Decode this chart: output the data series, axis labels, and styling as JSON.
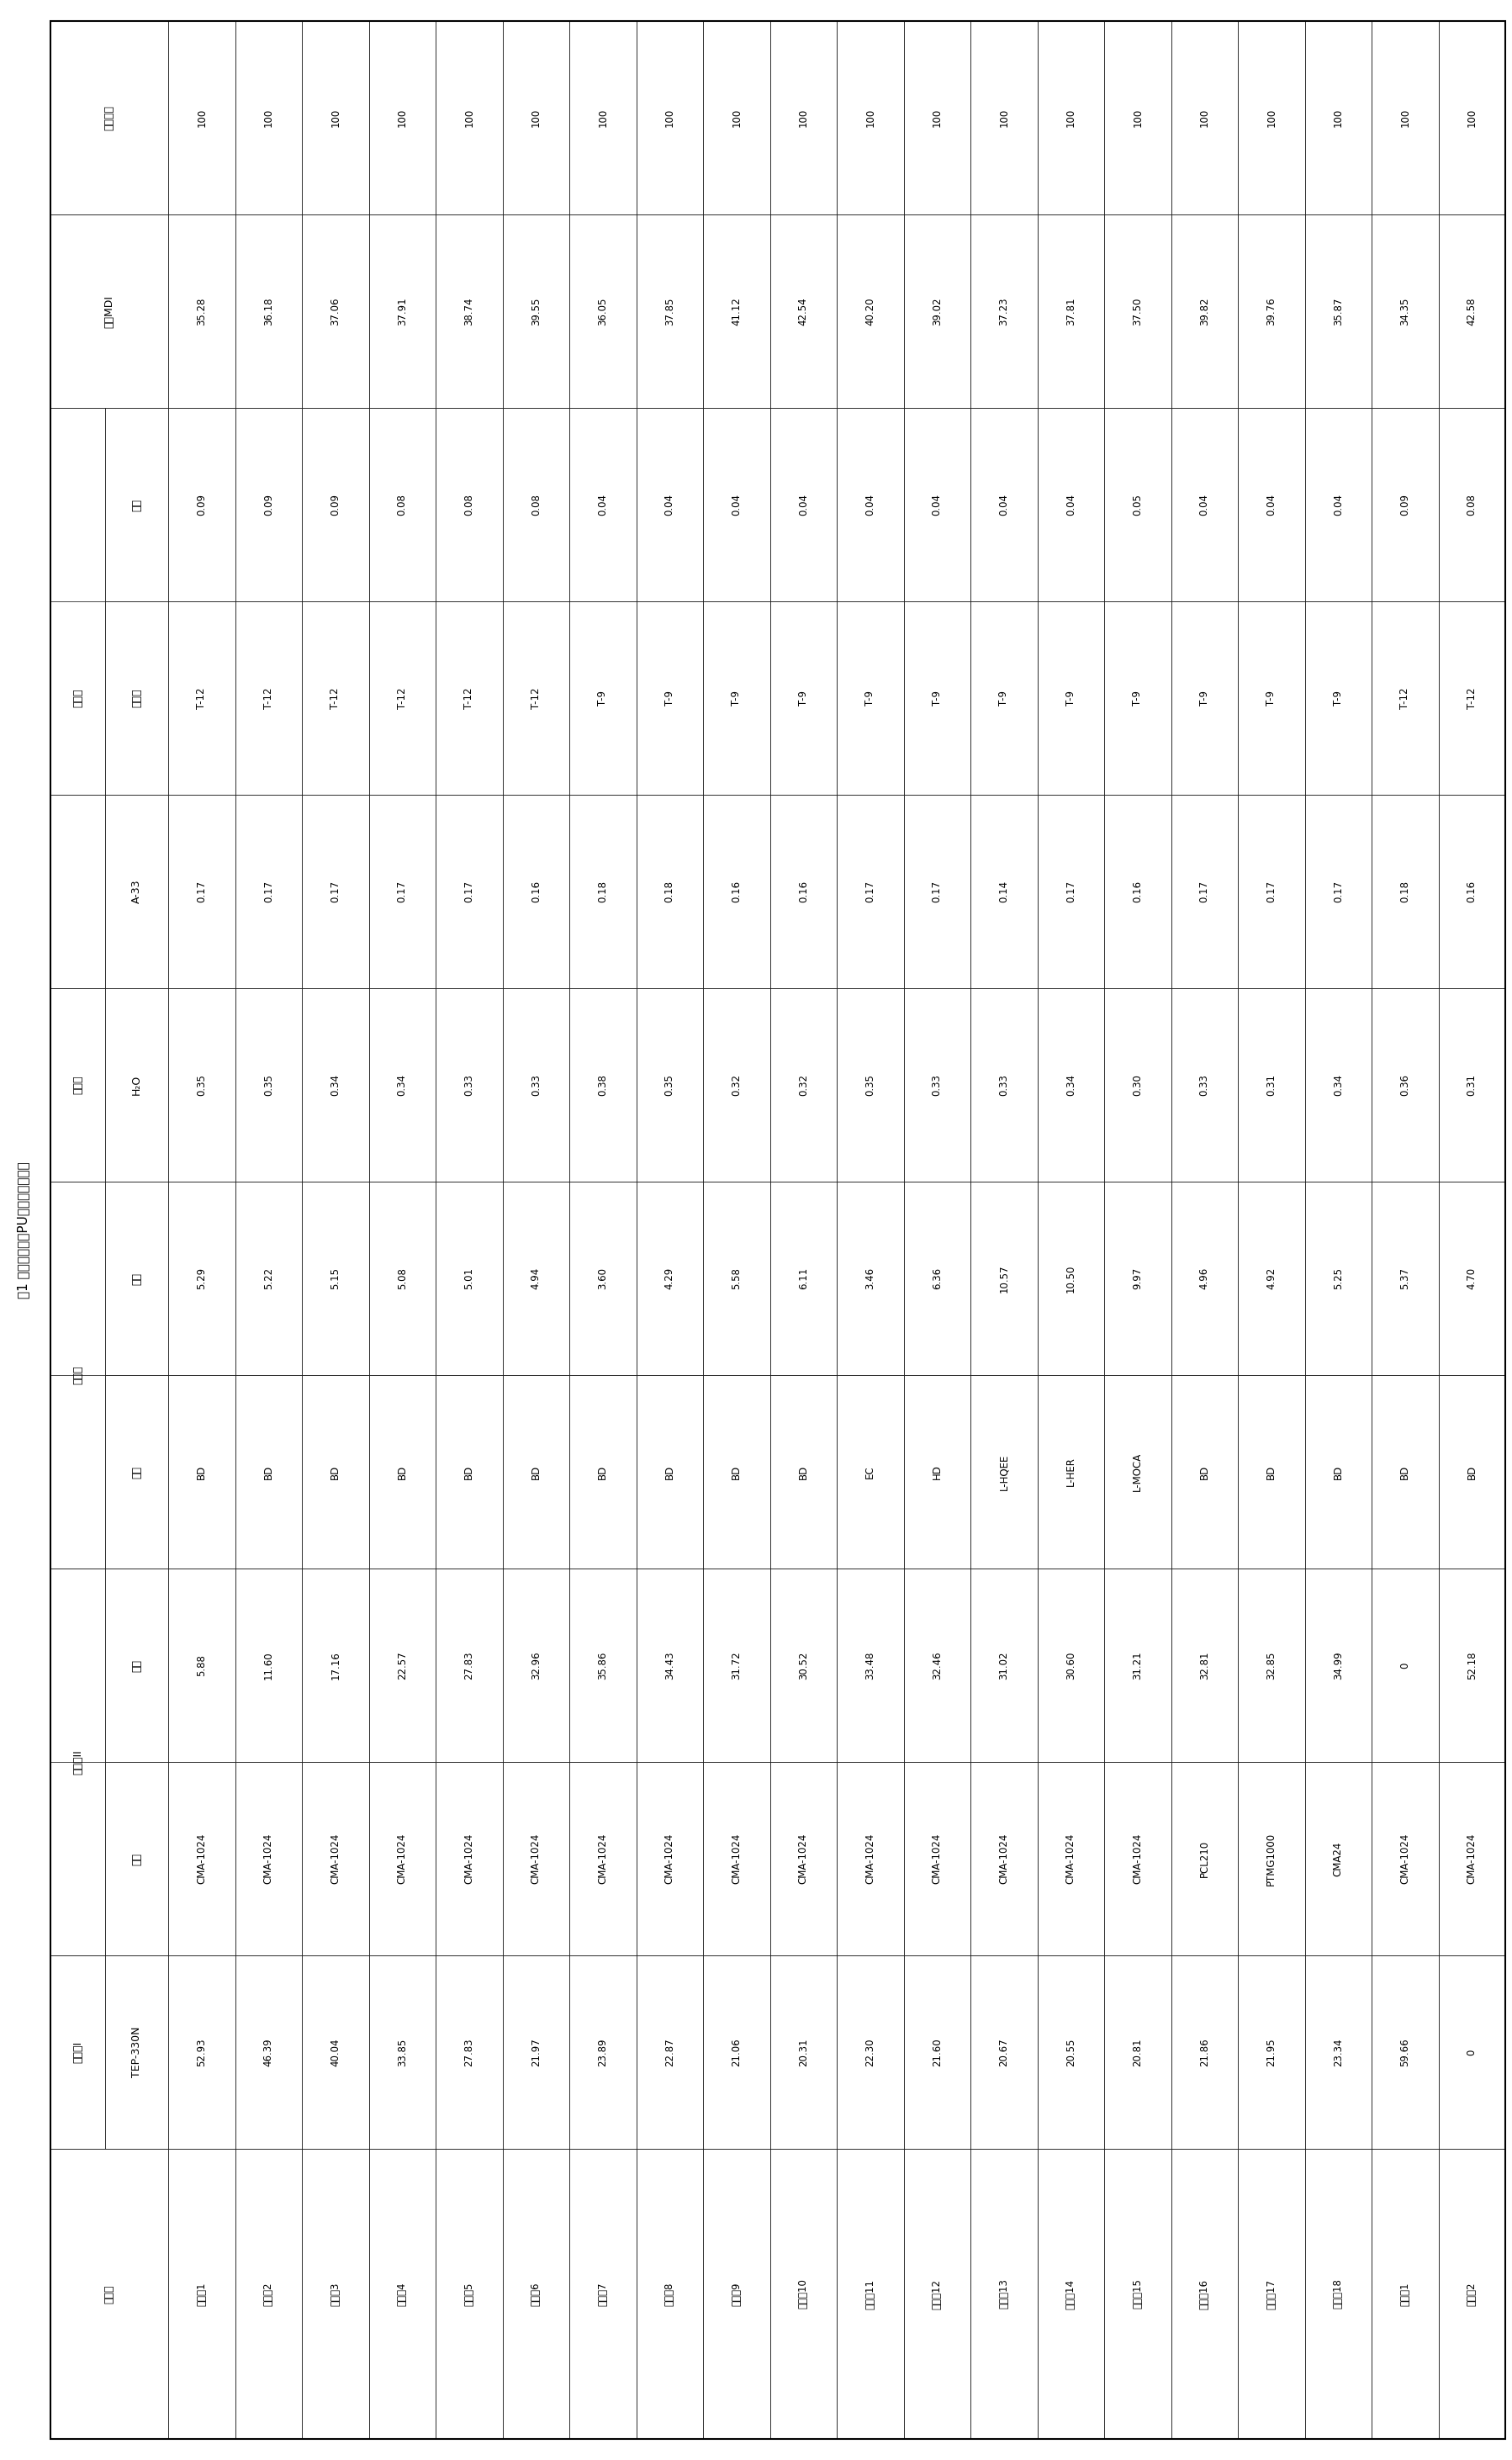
{
  "title": "表1 各实施例制备PU泡沫的基本配方",
  "examples": [
    "实施例1",
    "实施例2",
    "实施例3",
    "实施例4",
    "实施例5",
    "实施例6",
    "实施例7",
    "实施例8",
    "实施例9",
    "实施例10",
    "实施例11",
    "实施例12",
    "实施例13",
    "实施例14",
    "实施例15",
    "实施例16",
    "实施例17",
    "实施例18",
    "对比例1",
    "对比例2"
  ],
  "row_groups": [
    {
      "label": "多元醇I",
      "sub_rows": [
        {
          "name": "TEP-330N",
          "values": [
            "52.93",
            "46.39",
            "40.04",
            "33.85",
            "27.83",
            "21.97",
            "23.89",
            "22.87",
            "21.06",
            "20.31",
            "22.30",
            "21.60",
            "20.67",
            "20.55",
            "20.81",
            "21.86",
            "21.95",
            "23.34",
            "59.66",
            "0"
          ]
        }
      ]
    },
    {
      "label": "多元醇II",
      "sub_rows": [
        {
          "name": "牌号",
          "values": [
            "CMA-1024",
            "CMA-1024",
            "CMA-1024",
            "CMA-1024",
            "CMA-1024",
            "CMA-1024",
            "CMA-1024",
            "CMA-1024",
            "CMA-1024",
            "CMA-1024",
            "CMA-1024",
            "CMA-1024",
            "CMA-1024",
            "CMA-1024",
            "CMA-1024",
            "PCL210",
            "PTMG1000",
            "CMA24",
            "CMA-1024",
            "CMA-1024"
          ]
        },
        {
          "name": "用量",
          "values": [
            "5.88",
            "11.60",
            "17.16",
            "22.57",
            "27.83",
            "32.96",
            "35.86",
            "34.43",
            "31.72",
            "30.52",
            "33.48",
            "32.46",
            "31.02",
            "30.60",
            "31.21",
            "32.81",
            "32.85",
            "34.99",
            "0",
            "52.18"
          ]
        }
      ]
    },
    {
      "label": "扩链剂",
      "sub_rows": [
        {
          "name": "名称",
          "values": [
            "BD",
            "BD",
            "BD",
            "BD",
            "BD",
            "BD",
            "BD",
            "BD",
            "BD",
            "BD",
            "EC",
            "HD",
            "L-HQEE",
            "L-HER",
            "L-MOCA",
            "BD",
            "BD",
            "BD",
            "BD",
            "BD"
          ]
        },
        {
          "name": "用量",
          "values": [
            "5.29",
            "5.22",
            "5.15",
            "5.08",
            "5.01",
            "4.94",
            "3.60",
            "4.29",
            "5.58",
            "6.11",
            "3.46",
            "6.36",
            "10.57",
            "10.50",
            "9.97",
            "4.96",
            "4.92",
            "5.25",
            "5.37",
            "4.70"
          ]
        }
      ]
    },
    {
      "label": "发泡剂",
      "sub_rows": [
        {
          "name": "H₂O",
          "values": [
            "0.35",
            "0.35",
            "0.34",
            "0.34",
            "0.33",
            "0.33",
            "0.38",
            "0.35",
            "0.32",
            "0.32",
            "0.35",
            "0.33",
            "0.33",
            "0.34",
            "0.30",
            "0.33",
            "0.31",
            "0.34",
            "0.36",
            "0.31"
          ]
        }
      ]
    },
    {
      "label": "催化剂",
      "sub_rows": [
        {
          "name": "A-33",
          "values": [
            "0.17",
            "0.17",
            "0.17",
            "0.17",
            "0.17",
            "0.16",
            "0.18",
            "0.18",
            "0.16",
            "0.16",
            "0.17",
            "0.17",
            "0.14",
            "0.17",
            "0.16",
            "0.17",
            "0.17",
            "0.17",
            "0.18",
            "0.16"
          ]
        },
        {
          "name": "有机锡",
          "values": [
            "T-12",
            "T-12",
            "T-12",
            "T-12",
            "T-12",
            "T-12",
            "T-9",
            "T-9",
            "T-9",
            "T-9",
            "T-9",
            "T-9",
            "T-9",
            "T-9",
            "T-9",
            "T-9",
            "T-9",
            "T-9",
            "T-12",
            "T-12"
          ]
        },
        {
          "name": "用量",
          "values": [
            "0.09",
            "0.09",
            "0.09",
            "0.08",
            "0.08",
            "0.08",
            "0.04",
            "0.04",
            "0.04",
            "0.04",
            "0.04",
            "0.04",
            "0.04",
            "0.04",
            "0.05",
            "0.04",
            "0.04",
            "0.04",
            "0.09",
            "0.08"
          ]
        }
      ]
    },
    {
      "label": "改性MDI",
      "sub_rows": [
        {
          "name": "",
          "values": [
            "35.28",
            "36.18",
            "37.06",
            "37.91",
            "38.74",
            "39.55",
            "36.05",
            "37.85",
            "41.12",
            "42.54",
            "40.20",
            "39.02",
            "37.23",
            "37.81",
            "37.50",
            "39.82",
            "39.76",
            "35.87",
            "34.35",
            "42.58"
          ]
        }
      ]
    },
    {
      "label": "配方总量",
      "sub_rows": [
        {
          "name": "",
          "values": [
            "100",
            "100",
            "100",
            "100",
            "100",
            "100",
            "100",
            "100",
            "100",
            "100",
            "100",
            "100",
            "100",
            "100",
            "100",
            "100",
            "100",
            "100",
            "100",
            "100"
          ]
        }
      ]
    }
  ]
}
